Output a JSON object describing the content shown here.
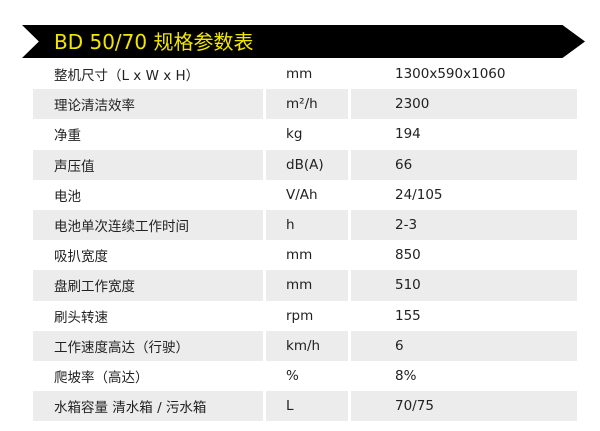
{
  "title": "BD 50/70 规格参数表",
  "colors": {
    "banner_bg": "#000000",
    "title_text": "#f2e600",
    "row_shade": "#ececec"
  },
  "rows": [
    {
      "name": "整机尺寸（L x W x H）",
      "unit": "mm",
      "value": "1300x590x1060"
    },
    {
      "name": "理论清洁效率",
      "unit": "m²/h",
      "value": "2300"
    },
    {
      "name": "净重",
      "unit": "kg",
      "value": "194"
    },
    {
      "name": "声压值",
      "unit": "dB(A)",
      "value": "66"
    },
    {
      "name": "电池",
      "unit": "V/Ah",
      "value": "24/105"
    },
    {
      "name": "电池单次连续工作时间",
      "unit": "h",
      "value": "2-3"
    },
    {
      "name": "吸扒宽度",
      "unit": "mm",
      "value": "850"
    },
    {
      "name": "盘刷工作宽度",
      "unit": "mm",
      "value": "510"
    },
    {
      "name": "刷头转速",
      "unit": "rpm",
      "value": "155"
    },
    {
      "name": "工作速度高达（行驶）",
      "unit": "km/h",
      "value": "6"
    },
    {
      "name": "爬坡率（高达）",
      "unit": "%",
      "value": "8%"
    },
    {
      "name": "水箱容量 清水箱 / 污水箱",
      "unit": "L",
      "value": "70/75"
    }
  ]
}
